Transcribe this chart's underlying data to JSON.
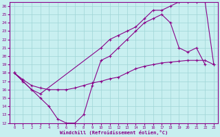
{
  "xlabel": "Windchill (Refroidissement éolien,°C)",
  "bg_color": "#c8eff0",
  "grid_color": "#9ed4d6",
  "line_color": "#880088",
  "xlim": [
    -0.5,
    23.5
  ],
  "ylim": [
    12,
    26.5
  ],
  "xticks": [
    0,
    1,
    2,
    3,
    4,
    5,
    6,
    7,
    8,
    9,
    10,
    11,
    12,
    13,
    14,
    15,
    16,
    17,
    18,
    19,
    20,
    21,
    22,
    23
  ],
  "yticks": [
    12,
    13,
    14,
    15,
    16,
    17,
    18,
    19,
    20,
    21,
    22,
    23,
    24,
    25,
    26
  ],
  "line1_x": [
    0,
    1,
    2,
    3,
    4,
    5,
    6,
    7,
    8,
    9,
    10,
    11,
    12,
    13,
    14,
    15,
    16,
    17,
    18,
    19,
    20,
    21,
    22
  ],
  "line1_y": [
    18,
    17,
    16,
    15,
    14,
    12.5,
    12,
    12,
    13,
    16.5,
    19.5,
    20,
    21,
    22,
    23,
    24,
    24.5,
    25,
    24,
    21,
    20.5,
    21,
    19
  ],
  "line2_x": [
    0,
    1,
    2,
    3,
    4,
    5,
    6,
    7,
    8,
    9,
    10,
    11,
    12,
    13,
    14,
    15,
    16,
    17,
    18,
    19,
    20,
    21,
    22,
    23
  ],
  "line2_y": [
    18,
    17.2,
    16.5,
    16.2,
    16,
    16,
    16,
    16.2,
    16.5,
    16.8,
    17,
    17.3,
    17.5,
    18,
    18.5,
    18.8,
    19,
    19.2,
    19.3,
    19.4,
    19.5,
    19.5,
    19.5,
    19
  ],
  "line3_x": [
    0,
    1,
    2,
    3,
    10,
    11,
    12,
    13,
    14,
    15,
    16,
    17,
    18,
    19,
    20,
    21,
    22,
    23
  ],
  "line3_y": [
    18,
    17,
    16,
    15.5,
    21,
    22,
    22.5,
    23,
    23.5,
    24.5,
    25.5,
    25.5,
    26,
    26.5,
    26.5,
    26.5,
    26.5,
    19
  ]
}
